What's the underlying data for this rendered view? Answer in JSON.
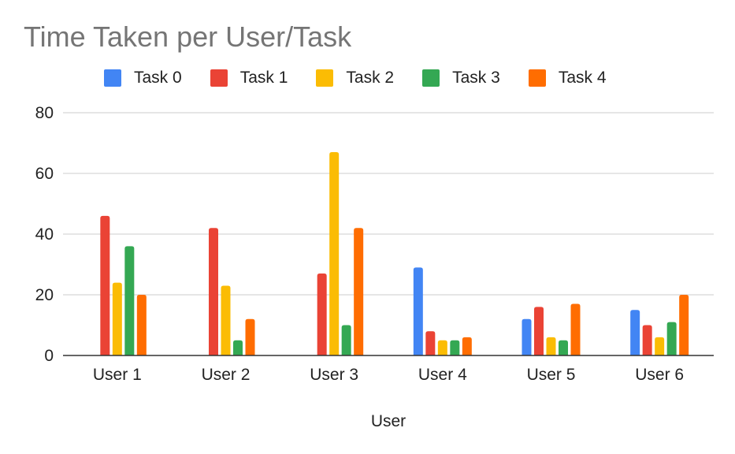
{
  "chart_data": {
    "type": "bar",
    "title": "Time Taken per User/Task",
    "xlabel": "User",
    "ylabel": "",
    "categories": [
      "User 1",
      "User 2",
      "User 3",
      "User 4",
      "User 5",
      "User 6"
    ],
    "series": [
      {
        "name": "Task 0",
        "color": "#4285F4",
        "values": [
          0,
          0,
          0,
          29,
          12,
          15
        ]
      },
      {
        "name": "Task 1",
        "color": "#EA4335",
        "values": [
          46,
          42,
          27,
          8,
          16,
          10
        ]
      },
      {
        "name": "Task 2",
        "color": "#FBBC04",
        "values": [
          24,
          23,
          67,
          5,
          6,
          6
        ]
      },
      {
        "name": "Task 3",
        "color": "#34A853",
        "values": [
          36,
          5,
          10,
          5,
          5,
          11
        ]
      },
      {
        "name": "Task 4",
        "color": "#FF6D01",
        "values": [
          20,
          12,
          42,
          6,
          17,
          20
        ]
      }
    ],
    "ylim": [
      0,
      80
    ],
    "yticks": [
      0,
      20,
      40,
      60,
      80
    ],
    "grid": true,
    "legend_position": "top"
  }
}
